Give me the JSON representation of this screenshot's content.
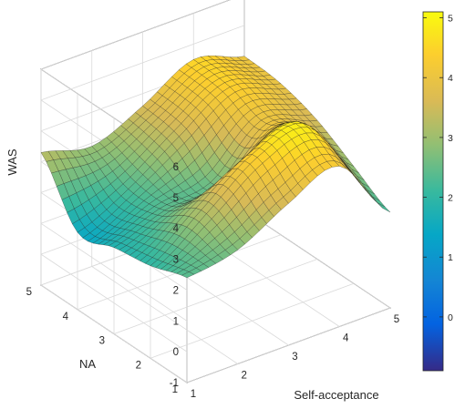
{
  "chart_data": {
    "type": "surface",
    "xlabel": "Self-acceptance",
    "ylabel": "NA",
    "zlabel": "WAS",
    "x_ticks": [
      "1",
      "2",
      "3",
      "4",
      "5"
    ],
    "y_ticks": [
      "1",
      "2",
      "3",
      "4",
      "5"
    ],
    "z_ticks": [
      "-1",
      "0",
      "1",
      "2",
      "3",
      "4",
      "5",
      "6"
    ],
    "xlim": [
      1,
      5
    ],
    "ylim": [
      1,
      5
    ],
    "zlim": [
      -1,
      6
    ],
    "grid": true,
    "colormap": "parula",
    "colorbar": {
      "position": "right",
      "ticks": [
        "0",
        "1",
        "2",
        "3",
        "4",
        "5"
      ],
      "range": [
        -0.9,
        5.1
      ]
    },
    "x": [
      1,
      2,
      3,
      4,
      5
    ],
    "y": [
      1,
      2,
      3,
      4,
      5
    ],
    "z": [
      [
        2.4,
        2.7,
        3.6,
        4.2,
        2.1
      ],
      [
        2.0,
        3.2,
        4.4,
        4.8,
        2.8
      ],
      [
        1.8,
        2.4,
        2.6,
        4.0,
        3.5
      ],
      [
        1.5,
        2.3,
        3.4,
        4.4,
        3.9
      ],
      [
        3.3,
        2.9,
        3.6,
        4.5,
        4.0
      ]
    ]
  }
}
